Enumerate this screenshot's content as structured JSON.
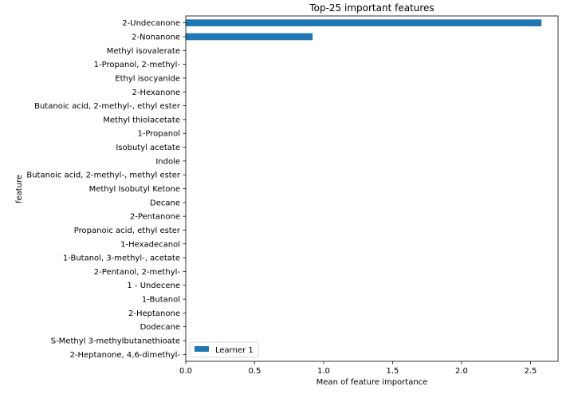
{
  "chart_data": {
    "type": "bar",
    "orientation": "horizontal",
    "title": "Top-25 important features",
    "xlabel": "Mean of feature importance",
    "ylabel": "feature",
    "xlim": [
      0,
      2.7
    ],
    "xticks": [
      "0.0",
      "0.5",
      "1.0",
      "1.5",
      "2.0",
      "2.5"
    ],
    "grid": false,
    "legend_position": "lower-left",
    "categories": [
      "2-Undecanone",
      "2-Nonanone",
      "Methyl isovalerate",
      "1-Propanol, 2-methyl-",
      "Ethyl isocyanide",
      "2-Hexanone",
      "Butanoic acid, 2-methyl-, ethyl ester",
      "Methyl thiolacetate",
      "1-Propanol",
      "Isobutyl acetate",
      "Indole",
      "Butanoic acid, 2-methyl-, methyl ester",
      "Methyl Isobutyl Ketone",
      "Decane",
      "2-Pentanone",
      "Propanoic acid, ethyl ester",
      "1-Hexadecanol",
      "1-Butanol, 3-methyl-, acetate",
      "2-Pentanol, 2-methyl-",
      "1 - Undecene",
      "1-Butanol",
      "2-Heptanone",
      "Dodecane",
      "S-Methyl 3-methylbutanethioate",
      "2-Heptanone, 4,6-dimethyl-"
    ],
    "series": [
      {
        "name": "Learner 1",
        "color": "#1f77b4",
        "values": [
          2.58,
          0.92,
          0,
          0,
          0,
          0,
          0,
          0,
          0,
          0,
          0,
          0,
          0,
          0,
          0,
          0,
          0,
          0,
          0,
          0,
          0,
          0,
          0,
          0,
          0
        ]
      }
    ]
  }
}
